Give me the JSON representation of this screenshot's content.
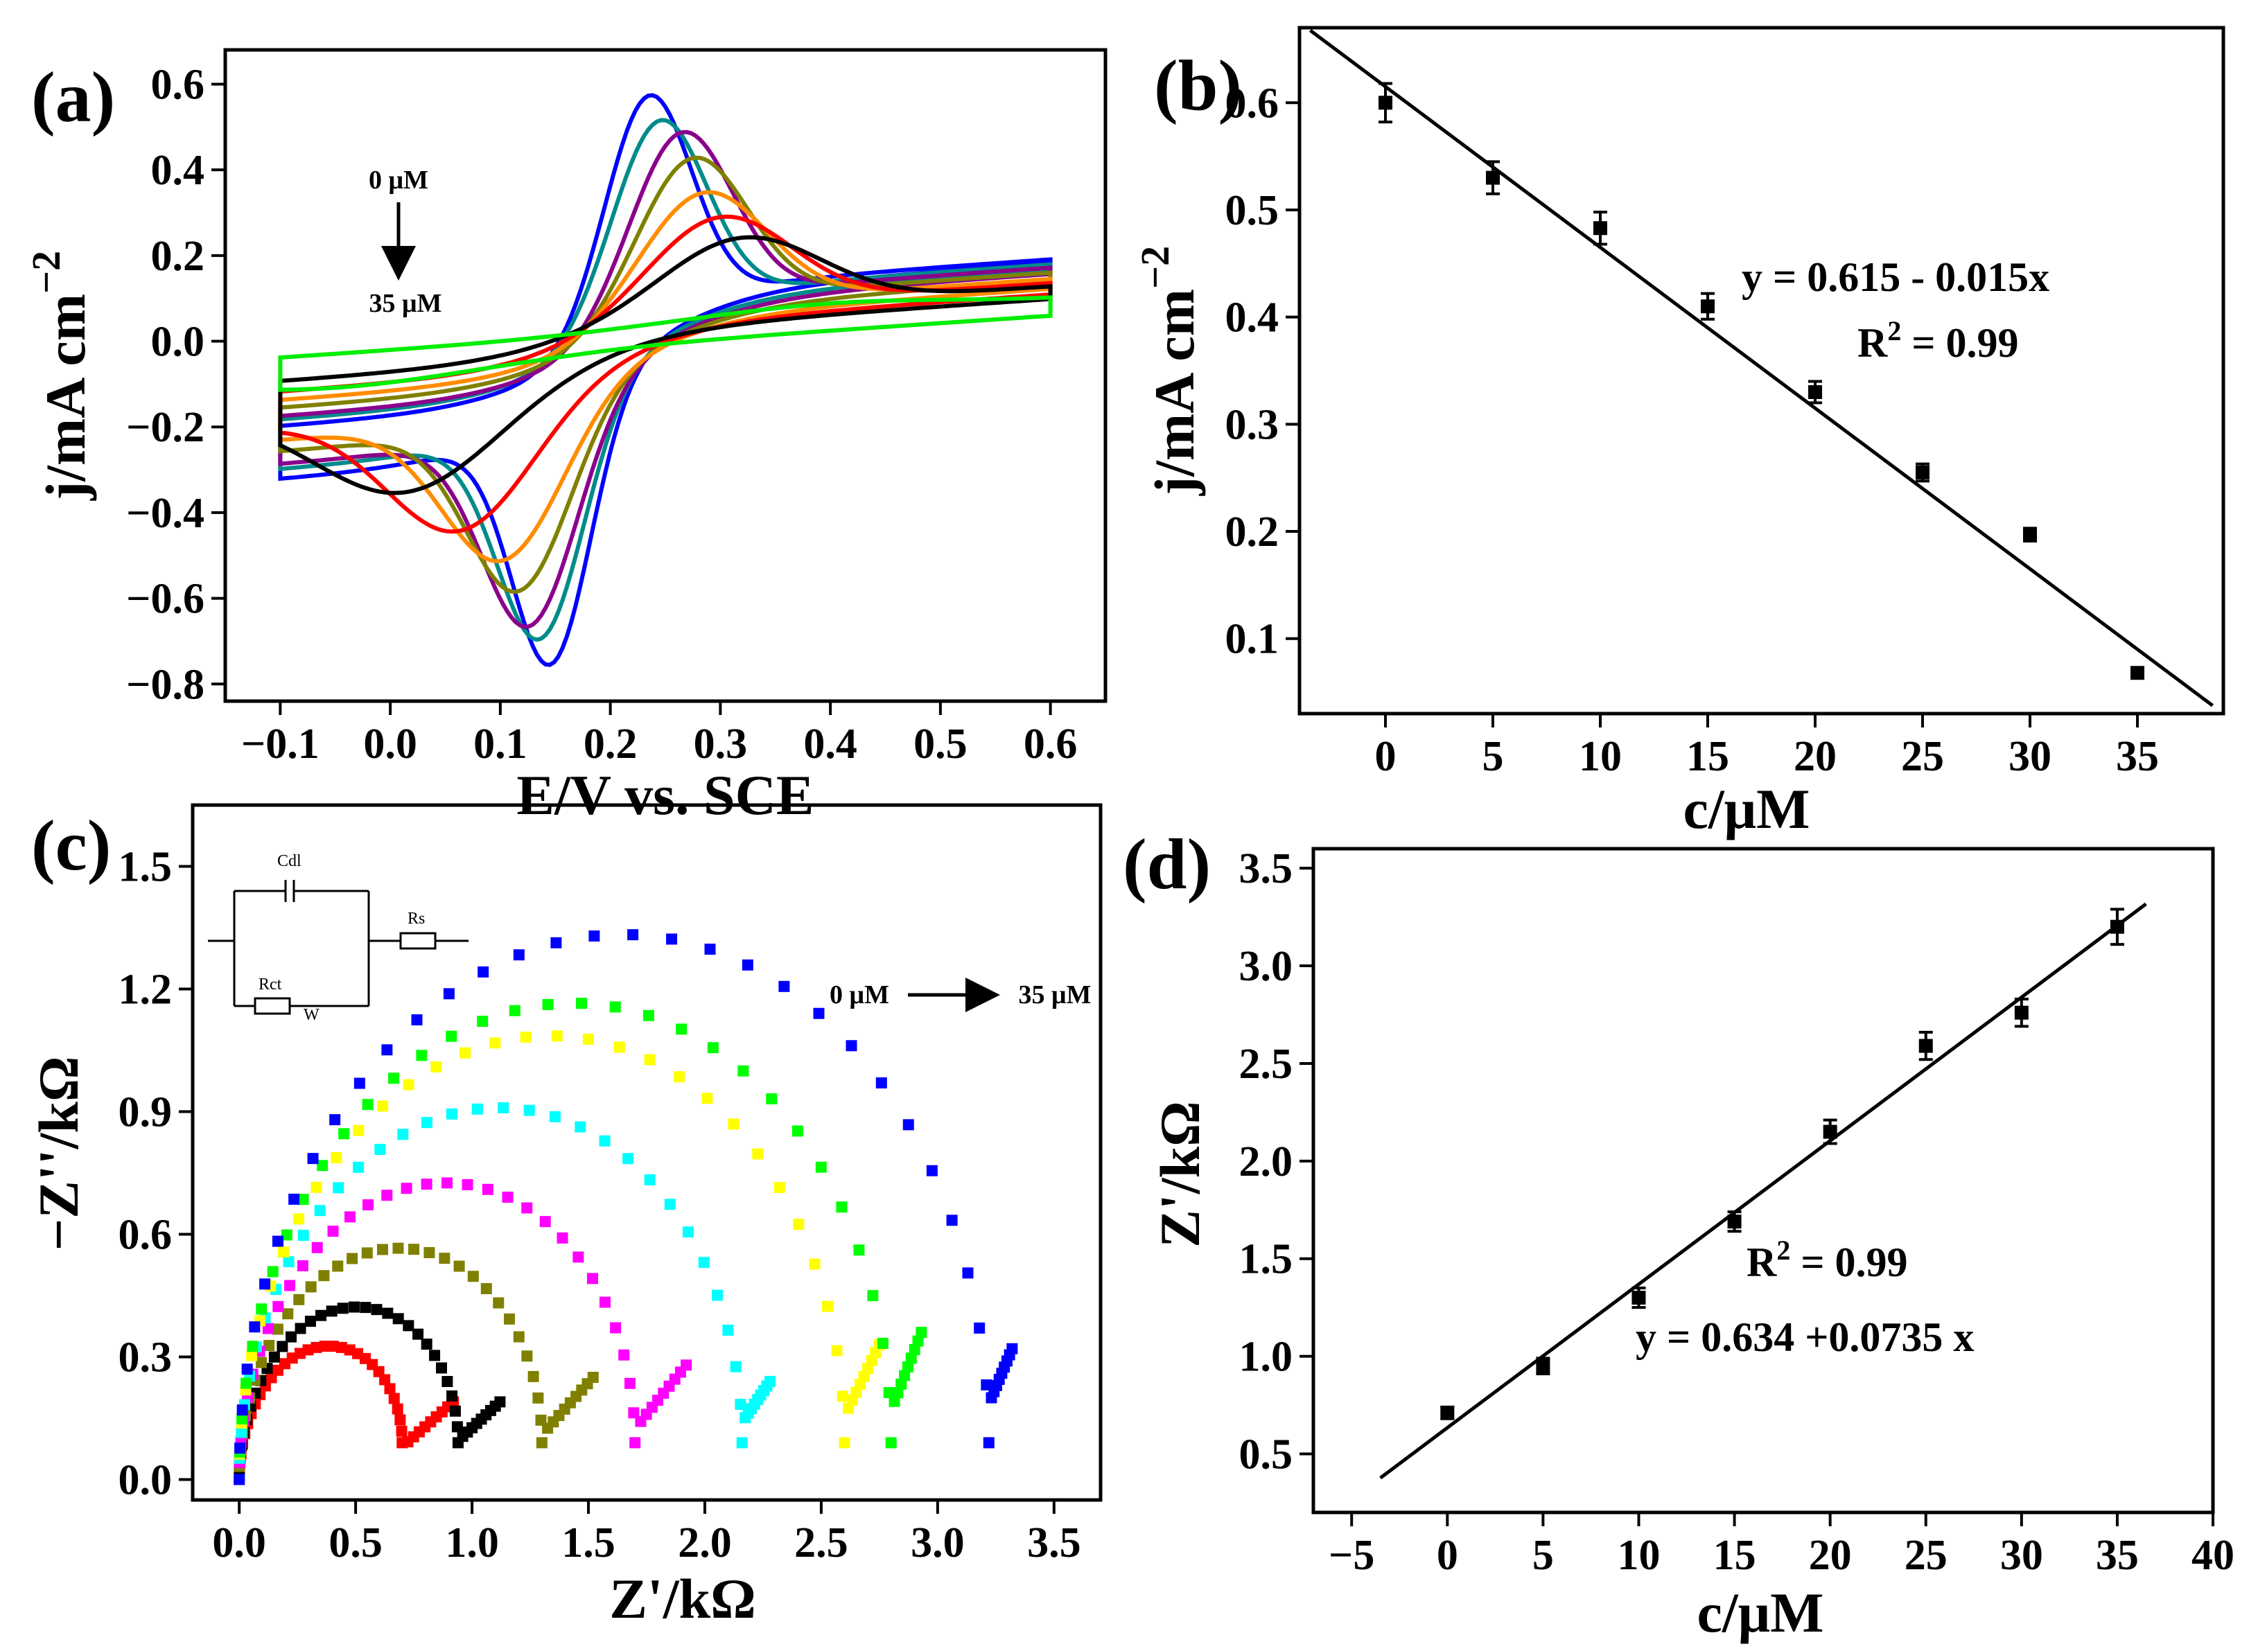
{
  "chart_data": [
    {
      "panel": "(a)",
      "type": "line",
      "xlabel": "E/V vs. SCE",
      "ylabel": "j/mA cm",
      "ylabel_sup": "−2",
      "xlim": [
        -0.15,
        0.65
      ],
      "ylim": [
        -0.84,
        0.68
      ],
      "xticks": [
        "−0.1",
        "0.0",
        "0.1",
        "0.2",
        "0.3",
        "0.4",
        "0.5",
        "0.6"
      ],
      "yticks": [
        "−0.8",
        "−0.6",
        "−0.4",
        "−0.2",
        "0.0",
        "0.2",
        "0.4",
        "0.6"
      ],
      "annotation_top": "0 μM",
      "annotation_bottom": "35 μM",
      "series": [
        {
          "color": "#0000ff",
          "ipa": 0.6,
          "ipc": -0.77,
          "Epa": 0.235,
          "Epc": 0.145,
          "wa": 0.055,
          "wc": 0.05
        },
        {
          "color": "#008b8b",
          "ipa": 0.53,
          "ipc": -0.7,
          "Epa": 0.245,
          "Epc": 0.135,
          "wa": 0.06,
          "wc": 0.055
        },
        {
          "color": "#8b008b",
          "ipa": 0.49,
          "ipc": -0.66,
          "Epa": 0.265,
          "Epc": 0.125,
          "wa": 0.065,
          "wc": 0.06
        },
        {
          "color": "#808000",
          "ipa": 0.42,
          "ipc": -0.57,
          "Epa": 0.275,
          "Epc": 0.115,
          "wa": 0.07,
          "wc": 0.065
        },
        {
          "color": "#ff8c00",
          "ipa": 0.33,
          "ipc": -0.49,
          "Epa": 0.285,
          "Epc": 0.1,
          "wa": 0.08,
          "wc": 0.075
        },
        {
          "color": "#ff0000",
          "ipa": 0.26,
          "ipc": -0.41,
          "Epa": 0.3,
          "Epc": 0.06,
          "wa": 0.09,
          "wc": 0.09
        },
        {
          "color": "#000000",
          "ipa": 0.2,
          "ipc": -0.31,
          "Epa": 0.32,
          "Epc": 0.01,
          "wa": 0.1,
          "wc": 0.11
        },
        {
          "color": "#00ee00",
          "ipa": 0.03,
          "ipc": -0.05,
          "Epa": 0.4,
          "Epc": -0.05,
          "wa": 0.15,
          "wc": 0.15
        }
      ]
    },
    {
      "panel": "(b)",
      "type": "scatter",
      "xlabel": "c/μM",
      "ylabel": "j/mA cm",
      "ylabel_sup": "−2",
      "xlim": [
        -4,
        39
      ],
      "ylim": [
        0.03,
        0.67
      ],
      "xticks": [
        "0",
        "5",
        "10",
        "15",
        "20",
        "25",
        "30",
        "35"
      ],
      "yticks": [
        "0.1",
        "0.2",
        "0.3",
        "0.4",
        "0.5",
        "0.6"
      ],
      "x": [
        0,
        5,
        10,
        15,
        20,
        25,
        30,
        35
      ],
      "y": [
        0.6,
        0.53,
        0.483,
        0.41,
        0.33,
        0.255,
        0.197,
        0.068
      ],
      "err": [
        0.018,
        0.015,
        0.015,
        0.012,
        0.01,
        0.008,
        0.006,
        0.004
      ],
      "fit": {
        "intercept": 0.615,
        "slope": -0.015,
        "x_range": [
          -3.5,
          38.5
        ]
      },
      "equation": "y = 0.615 - 0.015x",
      "r2_label": "R",
      "r2_sup": "2",
      "r2_value": " = 0.99"
    },
    {
      "panel": "(c)",
      "type": "scatter",
      "xlabel": "Z'/kΩ",
      "ylabel": "−Z''/kΩ",
      "xlim": [
        -0.2,
        3.7
      ],
      "ylim": [
        -0.05,
        1.65
      ],
      "xticks": [
        "0.0",
        "0.5",
        "1.0",
        "1.5",
        "2.0",
        "2.5",
        "3.0",
        "3.5"
      ],
      "yticks": [
        "0.0",
        "0.3",
        "0.6",
        "0.9",
        "1.2",
        "1.5"
      ],
      "annotation_left": "0 μM",
      "annotation_right": "35 μM",
      "circuit_labels": {
        "cdl": "Cdl",
        "rs": "Rs",
        "rct": "Rct",
        "w": "W"
      },
      "series": [
        {
          "color": "#ff0000",
          "rct": 0.7,
          "tail_end": 0.92,
          "tail_top": 0.19
        },
        {
          "color": "#000000",
          "rct": 0.94,
          "tail_end": 1.12,
          "tail_top": 0.19
        },
        {
          "color": "#808000",
          "rct": 1.3,
          "tail_end": 1.52,
          "tail_top": 0.25
        },
        {
          "color": "#ff00ff",
          "rct": 1.7,
          "tail_end": 1.92,
          "tail_top": 0.28
        },
        {
          "color": "#00ffff",
          "rct": 2.16,
          "tail_end": 2.28,
          "tail_top": 0.24
        },
        {
          "color": "#ffff00",
          "rct": 2.6,
          "tail_end": 2.75,
          "tail_top": 0.33
        },
        {
          "color": "#00ff00",
          "rct": 2.8,
          "tail_end": 2.93,
          "tail_top": 0.36
        },
        {
          "color": "#0000ff",
          "rct": 3.22,
          "tail_end": 3.32,
          "tail_top": 0.32
        }
      ]
    },
    {
      "panel": "(d)",
      "type": "scatter",
      "xlabel": "c/μM",
      "ylabel": "Z'/kΩ",
      "xlim": [
        -7,
        40
      ],
      "ylim": [
        0.2,
        3.6
      ],
      "xticks": [
        "−5",
        "0",
        "5",
        "10",
        "15",
        "20",
        "25",
        "30",
        "35",
        "40"
      ],
      "yticks": [
        "0.5",
        "1.0",
        "1.5",
        "2.0",
        "2.5",
        "3.0",
        "3.5"
      ],
      "x": [
        0,
        5,
        10,
        15,
        20,
        25,
        30,
        35
      ],
      "y": [
        0.71,
        0.95,
        1.3,
        1.69,
        2.15,
        2.59,
        2.76,
        3.2
      ],
      "err": [
        0.03,
        0.04,
        0.05,
        0.05,
        0.06,
        0.07,
        0.07,
        0.09
      ],
      "fit": {
        "intercept": 0.634,
        "slope": 0.0735,
        "x_range": [
          -3.5,
          36.5
        ]
      },
      "r2_label": "R",
      "r2_sup": "2",
      "r2_value": " = 0.99",
      "equation": "y = 0.634 +0.0735 x"
    }
  ]
}
